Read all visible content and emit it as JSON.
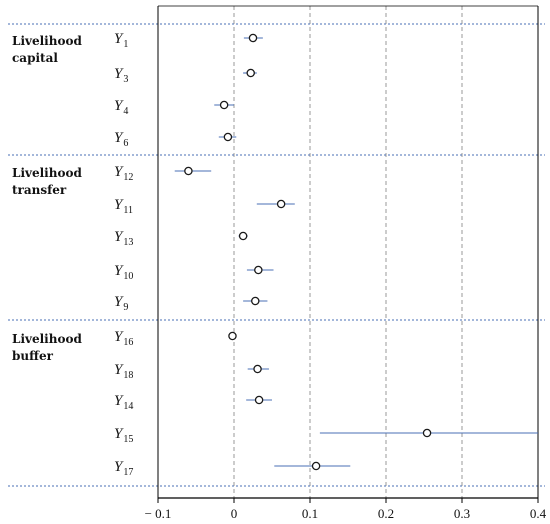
{
  "chart_data": {
    "type": "forest",
    "x_axis": {
      "range": [
        -0.1,
        0.4
      ],
      "ticks": [
        -0.1,
        0,
        0.1,
        0.2,
        0.3,
        0.4
      ],
      "tick_labels": [
        "− 0.1",
        "0",
        "0.1",
        "0.2",
        "0.3",
        "0.4"
      ],
      "vertical_dashed_gridlines": true
    },
    "groups": [
      {
        "label": "Livelihood capital",
        "label_lines": [
          "Livelihood",
          "capital"
        ],
        "items": [
          {
            "var": "Y",
            "sub": "1",
            "estimate": 0.025,
            "ci": [
              0.013,
              0.038
            ]
          },
          {
            "var": "Y",
            "sub": "3",
            "estimate": 0.022,
            "ci": [
              0.012,
              0.03
            ]
          },
          {
            "var": "Y",
            "sub": "4",
            "estimate": -0.013,
            "ci": [
              -0.026,
              0.0
            ]
          },
          {
            "var": "Y",
            "sub": "6",
            "estimate": -0.008,
            "ci": [
              -0.02,
              0.003
            ]
          }
        ]
      },
      {
        "label": "Livelihood transfer",
        "label_lines": [
          "Livelihood",
          "transfer"
        ],
        "items": [
          {
            "var": "Y",
            "sub": "12",
            "estimate": -0.06,
            "ci": [
              -0.078,
              -0.03
            ]
          },
          {
            "var": "Y",
            "sub": "11",
            "estimate": 0.062,
            "ci": [
              0.03,
              0.08
            ]
          },
          {
            "var": "Y",
            "sub": "13",
            "estimate": 0.012,
            "ci": [
              0.006,
              0.018
            ]
          },
          {
            "var": "Y",
            "sub": "10",
            "estimate": 0.032,
            "ci": [
              0.017,
              0.052
            ]
          },
          {
            "var": "Y",
            "sub": "9",
            "estimate": 0.028,
            "ci": [
              0.012,
              0.044
            ]
          }
        ]
      },
      {
        "label": "Livelihood buffer",
        "label_lines": [
          "Livelihood",
          "buffer"
        ],
        "items": [
          {
            "var": "Y",
            "sub": "16",
            "estimate": -0.002,
            "ci": [
              -0.005,
              0.001
            ]
          },
          {
            "var": "Y",
            "sub": "18",
            "estimate": 0.031,
            "ci": [
              0.018,
              0.046
            ]
          },
          {
            "var": "Y",
            "sub": "14",
            "estimate": 0.033,
            "ci": [
              0.016,
              0.05
            ]
          },
          {
            "var": "Y",
            "sub": "15",
            "estimate": 0.254,
            "ci": [
              0.113,
              0.4
            ]
          },
          {
            "var": "Y",
            "sub": "17",
            "estimate": 0.108,
            "ci": [
              0.053,
              0.153
            ]
          }
        ]
      }
    ],
    "colors": {
      "ci_line": "#4a6fb5",
      "marker": "#1a1a1a",
      "grid": "#808080",
      "separator": "#4a6fb5"
    }
  }
}
